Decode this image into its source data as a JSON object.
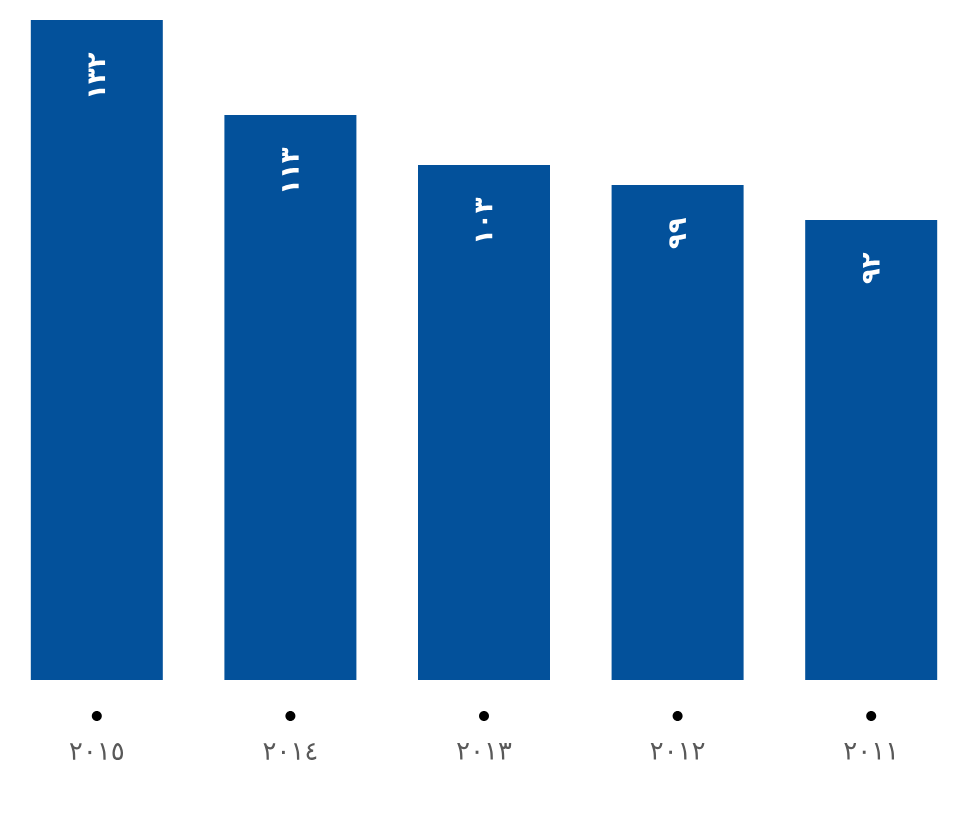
{
  "chart_data": {
    "type": "bar",
    "categories": [
      "٢٠١٥",
      "٢٠١٤",
      "٢٠١٣",
      "٢٠١٢",
      "٢٠١١"
    ],
    "values": [
      132,
      113,
      103,
      99,
      92
    ],
    "value_labels": [
      "١٣٢",
      "١١٣",
      "١٠٣",
      "٩٩",
      "٩٢"
    ],
    "color": "#03519b",
    "tick_labels": "x"
  }
}
